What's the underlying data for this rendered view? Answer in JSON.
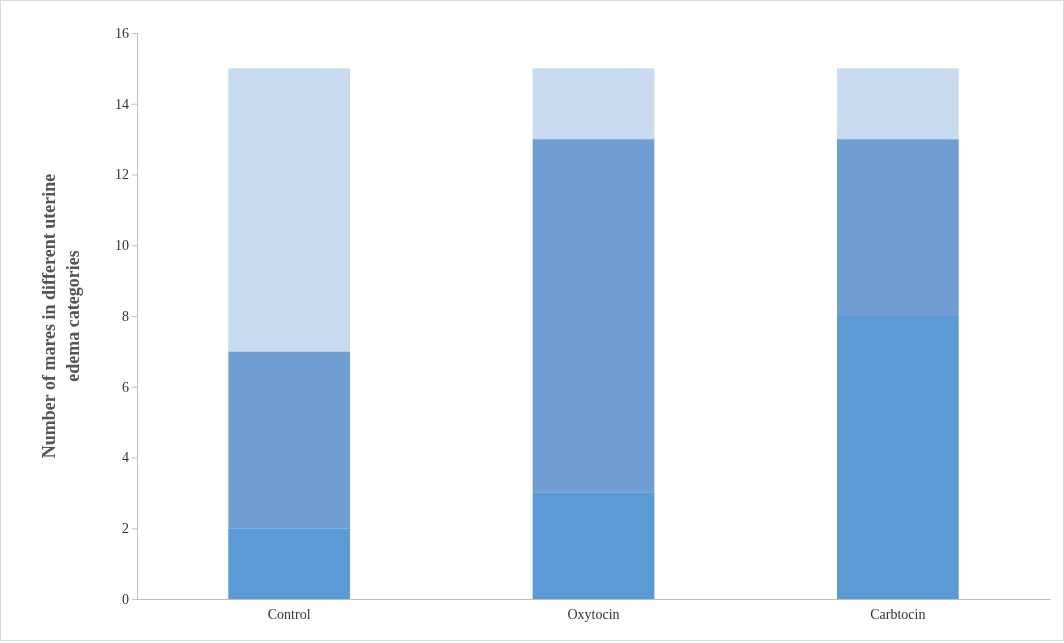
{
  "chart_data": {
    "type": "bar",
    "stacked": true,
    "ylabel": "Number of mares in different uterine edema categories",
    "categories": [
      "Control",
      "Oxytocin",
      "Carbtocin"
    ],
    "series": [
      {
        "color": "#5b9bd5",
        "values": [
          2,
          3,
          8
        ]
      },
      {
        "color": "#6f9fd2",
        "values": [
          5,
          10,
          5
        ]
      },
      {
        "color": "#c9dbee",
        "values": [
          8,
          2,
          2
        ]
      }
    ],
    "ylim": [
      0,
      16
    ],
    "yticks": [
      0,
      2,
      4,
      6,
      8,
      10,
      12,
      14,
      16
    ],
    "grid": false
  }
}
